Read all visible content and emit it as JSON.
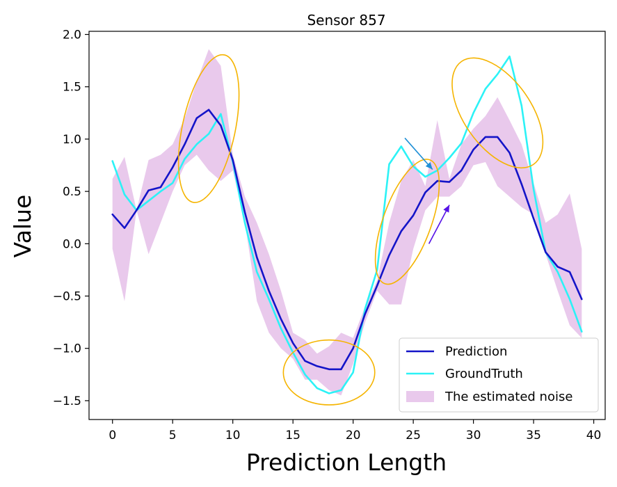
{
  "chart_data": {
    "type": "line",
    "title": "Sensor 857",
    "xlabel": "Prediction Length",
    "ylabel": "Value",
    "xlim": [
      -1.95,
      40.95
    ],
    "ylim": [
      -1.68,
      2.03
    ],
    "xticks": [
      0,
      5,
      10,
      15,
      20,
      25,
      30,
      35,
      40
    ],
    "yticks": [
      -1.5,
      -1.0,
      -0.5,
      0.0,
      0.5,
      1.0,
      1.5,
      2.0
    ],
    "ytick_labels": [
      "−1.5",
      "−1.0",
      "−0.5",
      "0.0",
      "0.5",
      "1.0",
      "1.5",
      "2.0"
    ],
    "grid": false,
    "legend_position": "lower-right",
    "series": [
      {
        "name": "Prediction",
        "color": "#1414c8",
        "x": [
          0,
          1,
          2,
          3,
          4,
          5,
          6,
          7,
          8,
          9,
          10,
          11,
          12,
          13,
          14,
          15,
          16,
          17,
          18,
          19,
          20,
          21,
          22,
          23,
          24,
          25,
          26,
          27,
          28,
          29,
          30,
          31,
          32,
          33,
          34,
          35,
          36,
          37,
          38,
          39
        ],
        "y": [
          0.28,
          0.15,
          0.32,
          0.51,
          0.54,
          0.73,
          0.95,
          1.2,
          1.28,
          1.13,
          0.8,
          0.3,
          -0.13,
          -0.45,
          -0.72,
          -0.95,
          -1.12,
          -1.17,
          -1.2,
          -1.2,
          -1.0,
          -0.67,
          -0.4,
          -0.11,
          0.12,
          0.27,
          0.49,
          0.6,
          0.59,
          0.7,
          0.9,
          1.02,
          1.02,
          0.87,
          0.57,
          0.24,
          -0.08,
          -0.22,
          -0.27,
          -0.53
        ]
      },
      {
        "name": "GroundTruth",
        "color": "#2cf2f6",
        "x": [
          0,
          1,
          2,
          3,
          4,
          5,
          6,
          7,
          8,
          9,
          10,
          11,
          12,
          13,
          14,
          15,
          16,
          17,
          18,
          19,
          20,
          21,
          22,
          23,
          24,
          25,
          26,
          27,
          28,
          29,
          30,
          31,
          32,
          33,
          34,
          35,
          36,
          37,
          38,
          39
        ],
        "y": [
          0.79,
          0.47,
          0.32,
          0.41,
          0.5,
          0.58,
          0.81,
          0.95,
          1.05,
          1.24,
          0.78,
          0.2,
          -0.27,
          -0.53,
          -0.81,
          -1.04,
          -1.25,
          -1.38,
          -1.43,
          -1.4,
          -1.23,
          -0.62,
          -0.25,
          0.76,
          0.93,
          0.74,
          0.64,
          0.7,
          0.82,
          0.96,
          1.25,
          1.48,
          1.62,
          1.79,
          1.32,
          0.52,
          -0.08,
          -0.27,
          -0.53,
          -0.84
        ]
      }
    ],
    "band": {
      "name": "The estimated noise",
      "color": "#e9c9ec",
      "x": [
        0,
        1,
        2,
        3,
        4,
        5,
        6,
        7,
        8,
        9,
        10,
        11,
        12,
        13,
        14,
        15,
        16,
        17,
        18,
        19,
        20,
        21,
        22,
        23,
        24,
        25,
        26,
        27,
        28,
        29,
        30,
        31,
        32,
        33,
        34,
        35,
        36,
        37,
        38,
        39
      ],
      "upper": [
        0.62,
        0.83,
        0.32,
        0.8,
        0.85,
        0.95,
        1.2,
        1.55,
        1.86,
        1.7,
        0.85,
        0.45,
        0.2,
        -0.1,
        -0.45,
        -0.85,
        -0.92,
        -1.05,
        -0.98,
        -0.85,
        -0.9,
        -0.6,
        -0.35,
        0.2,
        0.6,
        0.8,
        0.55,
        1.18,
        0.62,
        0.95,
        1.1,
        1.22,
        1.4,
        1.18,
        0.95,
        0.58,
        0.2,
        0.28,
        0.48,
        -0.05
      ],
      "lower": [
        -0.05,
        -0.55,
        0.32,
        -0.1,
        0.2,
        0.5,
        0.75,
        0.85,
        0.7,
        0.6,
        0.7,
        0.2,
        -0.55,
        -0.85,
        -1.0,
        -1.1,
        -1.3,
        -1.3,
        -1.4,
        -1.45,
        -1.15,
        -0.75,
        -0.45,
        -0.58,
        -0.58,
        -0.05,
        0.32,
        0.45,
        0.45,
        0.55,
        0.75,
        0.78,
        0.55,
        0.45,
        0.35,
        0.28,
        -0.1,
        -0.45,
        -0.78,
        -0.9
      ]
    },
    "annotations": {
      "ellipses": [
        {
          "cx": 8.0,
          "cy": 1.1,
          "rx": 2.2,
          "ry": 0.72,
          "rotate_deg": 12,
          "color": "#f5b400"
        },
        {
          "cx": 18.0,
          "cy": -1.23,
          "rx": 3.8,
          "ry": 0.31,
          "rotate_deg": 0,
          "color": "#f5b400"
        },
        {
          "cx": 24.5,
          "cy": 0.21,
          "rx": 2.0,
          "ry": 0.63,
          "rotate_deg": 20,
          "color": "#f5b400"
        },
        {
          "cx": 32.0,
          "cy": 1.25,
          "rx": 2.8,
          "ry": 0.6,
          "rotate_deg": -35,
          "color": "#f5b400"
        }
      ],
      "arrows": [
        {
          "x1": 24.3,
          "y1": 1.01,
          "x2": 26.6,
          "y2": 0.71,
          "color": "#1f8fd6"
        },
        {
          "x1": 26.3,
          "y1": 0.0,
          "x2": 28.0,
          "y2": 0.37,
          "color": "#5512e6"
        }
      ]
    }
  }
}
